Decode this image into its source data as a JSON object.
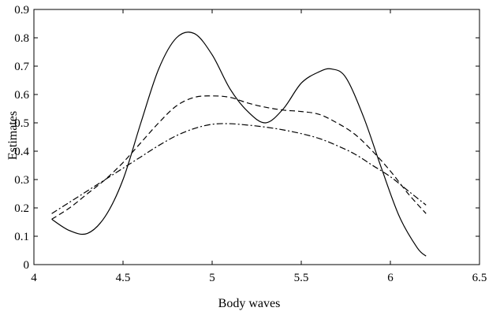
{
  "chart_data": {
    "type": "line",
    "title": "",
    "xlabel": "Body waves",
    "ylabel": "Estimates",
    "xlim": [
      4,
      6.5
    ],
    "ylim": [
      0,
      0.9
    ],
    "xticks": [
      4,
      4.5,
      5,
      5.5,
      6,
      6.5
    ],
    "xtick_labels": [
      "4",
      "4.5",
      "5",
      "5.5",
      "6",
      "6.5"
    ],
    "yticks": [
      0,
      0.1,
      0.2,
      0.3,
      0.4,
      0.5,
      0.6,
      0.7,
      0.8,
      0.9
    ],
    "ytick_labels": [
      "0",
      "0.1",
      "0.2",
      "0.3",
      "0.4",
      "0.5",
      "0.6",
      "0.7",
      "0.8",
      "0.9"
    ],
    "grid": false,
    "legend": "none",
    "series": [
      {
        "line_style": "solid",
        "x": [
          4.1,
          4.2,
          4.3,
          4.4,
          4.5,
          4.6,
          4.7,
          4.8,
          4.9,
          5.0,
          5.1,
          5.2,
          5.3,
          5.4,
          5.5,
          5.6,
          5.67,
          5.75,
          5.85,
          5.95,
          6.05,
          6.15,
          6.2
        ],
        "y": [
          0.16,
          0.12,
          0.11,
          0.17,
          0.3,
          0.5,
          0.69,
          0.8,
          0.815,
          0.74,
          0.62,
          0.54,
          0.5,
          0.55,
          0.64,
          0.68,
          0.69,
          0.66,
          0.52,
          0.34,
          0.17,
          0.06,
          0.03
        ]
      },
      {
        "line_style": "dashed",
        "x": [
          4.1,
          4.2,
          4.3,
          4.4,
          4.5,
          4.6,
          4.7,
          4.8,
          4.9,
          5.0,
          5.1,
          5.2,
          5.3,
          5.4,
          5.5,
          5.6,
          5.7,
          5.8,
          5.9,
          6.0,
          6.1,
          6.2
        ],
        "y": [
          0.16,
          0.2,
          0.25,
          0.3,
          0.36,
          0.43,
          0.5,
          0.56,
          0.59,
          0.595,
          0.59,
          0.57,
          0.555,
          0.545,
          0.54,
          0.53,
          0.5,
          0.46,
          0.4,
          0.33,
          0.25,
          0.18
        ]
      },
      {
        "line_style": "dashdot",
        "x": [
          4.1,
          4.2,
          4.3,
          4.4,
          4.5,
          4.6,
          4.7,
          4.8,
          4.9,
          5.0,
          5.1,
          5.2,
          5.3,
          5.4,
          5.5,
          5.6,
          5.7,
          5.8,
          5.9,
          6.0,
          6.1,
          6.2
        ],
        "y": [
          0.18,
          0.22,
          0.26,
          0.3,
          0.34,
          0.38,
          0.42,
          0.455,
          0.48,
          0.495,
          0.497,
          0.492,
          0.485,
          0.475,
          0.462,
          0.445,
          0.42,
          0.39,
          0.35,
          0.31,
          0.26,
          0.21
        ]
      }
    ]
  }
}
